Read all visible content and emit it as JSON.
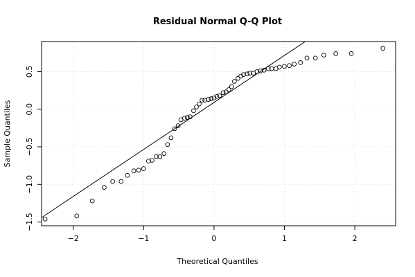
{
  "chart_data": {
    "type": "scatter",
    "title": "Residual Normal Q-Q Plot",
    "xlabel": "Theoretical Quantiles",
    "ylabel": "Sample Quantiles",
    "xlim": [
      -2.45,
      2.58
    ],
    "ylim": [
      -1.55,
      0.9
    ],
    "grid": true,
    "x_ticks": [
      -2,
      -1,
      0,
      1,
      2
    ],
    "x_tick_labels": [
      "−2",
      "−1",
      "0",
      "1",
      "2"
    ],
    "y_ticks": [
      -1.5,
      -1.0,
      -0.5,
      0.0,
      0.5
    ],
    "y_tick_labels": [
      "−1.5",
      "−1.0",
      "−0.5",
      "0.0",
      "0.5"
    ],
    "reference_line": {
      "slope": 0.625,
      "intercept": 0.09
    },
    "series": [
      {
        "marker": "open-circle",
        "x": [
          -2.4,
          -1.95,
          -1.73,
          -1.56,
          -1.44,
          -1.32,
          -1.23,
          -1.14,
          -1.07,
          -1.0,
          -0.93,
          -0.88,
          -0.82,
          -0.77,
          -0.71,
          -0.66,
          -0.61,
          -0.56,
          -0.51,
          -0.47,
          -0.42,
          -0.38,
          -0.34,
          -0.29,
          -0.25,
          -0.21,
          -0.17,
          -0.13,
          -0.08,
          -0.04,
          0.0,
          0.04,
          0.08,
          0.13,
          0.17,
          0.21,
          0.25,
          0.29,
          0.34,
          0.38,
          0.42,
          0.47,
          0.51,
          0.56,
          0.61,
          0.66,
          0.71,
          0.77,
          0.82,
          0.88,
          0.93,
          1.0,
          1.07,
          1.14,
          1.23,
          1.32,
          1.44,
          1.56,
          1.73,
          1.95,
          2.4
        ],
        "y": [
          -1.46,
          -1.42,
          -1.22,
          -1.04,
          -0.96,
          -0.96,
          -0.88,
          -0.82,
          -0.81,
          -0.79,
          -0.69,
          -0.68,
          -0.63,
          -0.63,
          -0.59,
          -0.47,
          -0.38,
          -0.26,
          -0.22,
          -0.14,
          -0.12,
          -0.11,
          -0.1,
          -0.02,
          0.03,
          0.07,
          0.12,
          0.12,
          0.13,
          0.14,
          0.15,
          0.17,
          0.18,
          0.22,
          0.23,
          0.26,
          0.3,
          0.37,
          0.41,
          0.44,
          0.46,
          0.47,
          0.48,
          0.48,
          0.5,
          0.51,
          0.52,
          0.54,
          0.54,
          0.54,
          0.56,
          0.57,
          0.58,
          0.6,
          0.62,
          0.68,
          0.68,
          0.72,
          0.74,
          0.74,
          0.81
        ]
      }
    ]
  }
}
